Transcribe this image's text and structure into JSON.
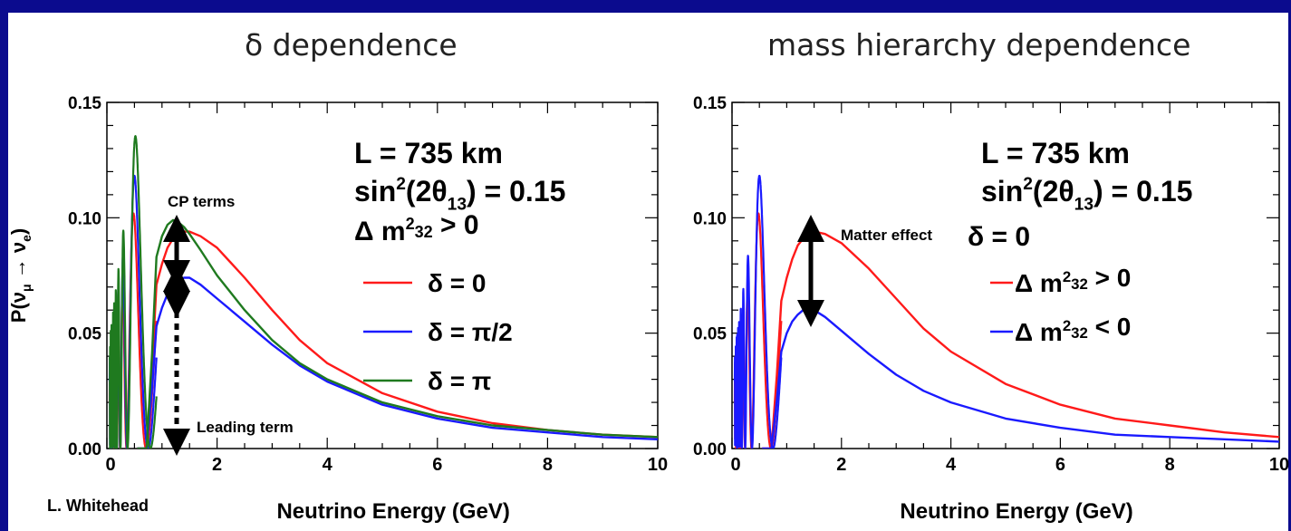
{
  "slide": {
    "background": "#0b0b8e",
    "credit": "L. Whitehead"
  },
  "chart_data": [
    {
      "type": "line",
      "title": "δ dependence",
      "xlabel": "Neutrino Energy (GeV)",
      "ylabel": "P(ν_μ → ν_e)",
      "xlim": [
        0,
        10
      ],
      "ylim": [
        0,
        0.15
      ],
      "xticks": [
        "0",
        "2",
        "4",
        "6",
        "8",
        "10"
      ],
      "yticks": [
        "0.00",
        "0.05",
        "0.10",
        "0.15"
      ],
      "grid": false,
      "info_lines": [
        "L = 735 km",
        "sin²(2θ₁₃) = 0.15",
        "Δ m²₃₂ > 0"
      ],
      "legend_position": "right",
      "series": [
        {
          "name": "δ = 0",
          "color": "#ff1a1a",
          "x": [
            0.9,
            1.0,
            1.1,
            1.2,
            1.3,
            1.4,
            1.5,
            1.7,
            2.0,
            2.5,
            3.0,
            3.5,
            4.0,
            5.0,
            6.0,
            7.0,
            8.0,
            9.0,
            10.0
          ],
          "y": [
            0.071,
            0.08,
            0.087,
            0.091,
            0.093,
            0.094,
            0.094,
            0.092,
            0.087,
            0.074,
            0.06,
            0.047,
            0.037,
            0.024,
            0.016,
            0.011,
            0.008,
            0.006,
            0.005
          ]
        },
        {
          "name": "δ = π/2",
          "color": "#1a1aff",
          "x": [
            0.9,
            1.0,
            1.1,
            1.2,
            1.3,
            1.4,
            1.5,
            1.7,
            2.0,
            2.5,
            3.0,
            3.5,
            4.0,
            5.0,
            6.0,
            7.0,
            8.0,
            9.0,
            10.0
          ],
          "y": [
            0.053,
            0.061,
            0.067,
            0.071,
            0.073,
            0.074,
            0.074,
            0.071,
            0.065,
            0.055,
            0.045,
            0.036,
            0.029,
            0.019,
            0.013,
            0.009,
            0.007,
            0.005,
            0.004
          ]
        },
        {
          "name": "δ = π",
          "color": "#1f7a1f",
          "x": [
            0.9,
            1.0,
            1.1,
            1.2,
            1.3,
            1.4,
            1.5,
            1.7,
            2.0,
            2.5,
            3.0,
            3.5,
            4.0,
            5.0,
            6.0,
            7.0,
            8.0,
            9.0,
            10.0
          ],
          "y": [
            0.083,
            0.092,
            0.097,
            0.099,
            0.098,
            0.096,
            0.093,
            0.086,
            0.075,
            0.06,
            0.047,
            0.037,
            0.03,
            0.02,
            0.014,
            0.01,
            0.008,
            0.006,
            0.005
          ]
        }
      ],
      "annotations": [
        "CP terms",
        "Leading term"
      ]
    },
    {
      "type": "line",
      "title": "mass hierarchy dependence",
      "xlabel": "Neutrino Energy (GeV)",
      "ylabel": "",
      "xlim": [
        0,
        10
      ],
      "ylim": [
        0,
        0.15
      ],
      "xticks": [
        "0",
        "2",
        "4",
        "6",
        "8",
        "10"
      ],
      "yticks": [
        "0.00",
        "0.05",
        "0.10",
        "0.15"
      ],
      "grid": false,
      "info_lines": [
        "L = 735 km",
        "sin²(2θ₁₃) = 0.15",
        "δ = 0"
      ],
      "legend_position": "right",
      "series": [
        {
          "name": "Δ m²₃₂ > 0",
          "color": "#ff1a1a",
          "x": [
            0.9,
            1.0,
            1.1,
            1.2,
            1.3,
            1.4,
            1.5,
            1.7,
            2.0,
            2.5,
            3.0,
            3.5,
            4.0,
            5.0,
            6.0,
            7.0,
            8.0,
            9.0,
            10.0
          ],
          "y": [
            0.064,
            0.074,
            0.082,
            0.088,
            0.091,
            0.093,
            0.094,
            0.093,
            0.089,
            0.078,
            0.065,
            0.052,
            0.042,
            0.028,
            0.019,
            0.013,
            0.01,
            0.007,
            0.005
          ]
        },
        {
          "name": "Δ m²₃₂ < 0",
          "color": "#1a1aff",
          "x": [
            0.9,
            1.0,
            1.1,
            1.2,
            1.3,
            1.4,
            1.5,
            1.7,
            2.0,
            2.5,
            3.0,
            3.5,
            4.0,
            5.0,
            6.0,
            7.0,
            8.0,
            9.0,
            10.0
          ],
          "y": [
            0.042,
            0.05,
            0.055,
            0.058,
            0.06,
            0.061,
            0.06,
            0.057,
            0.051,
            0.041,
            0.032,
            0.025,
            0.02,
            0.013,
            0.009,
            0.006,
            0.005,
            0.004,
            0.003
          ]
        }
      ],
      "annotations": [
        "Matter effect"
      ]
    }
  ]
}
